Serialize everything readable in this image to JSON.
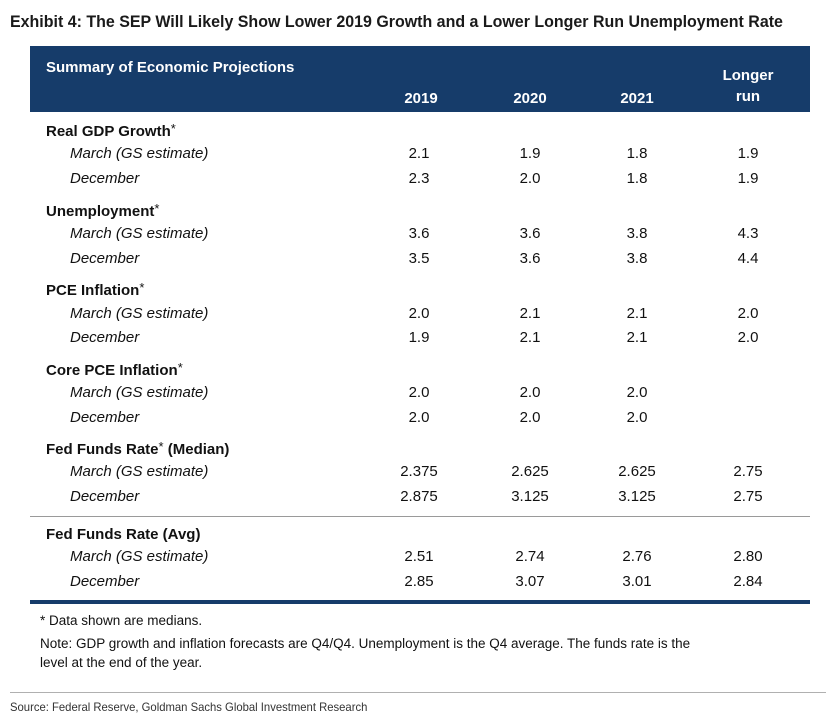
{
  "title": "Exhibit 4: The SEP Will Likely Show Lower 2019 Growth and a Lower Longer Run Unemployment Rate",
  "table_header": {
    "title": "Summary of Economic Projections",
    "col_2019": "2019",
    "col_2020": "2020",
    "col_2021": "2021",
    "col_longer_1": "Longer",
    "col_longer_2": "run"
  },
  "groups": [
    {
      "label": "Real GDP Growth",
      "star": "*",
      "suffix": "",
      "rows": [
        {
          "label": "March (GS estimate)",
          "v2019": "2.1",
          "v2020": "1.9",
          "v2021": "1.8",
          "vlong": "1.9"
        },
        {
          "label": "December",
          "v2019": "2.3",
          "v2020": "2.0",
          "v2021": "1.8",
          "vlong": "1.9"
        }
      ]
    },
    {
      "label": "Unemployment",
      "star": "*",
      "suffix": "",
      "rows": [
        {
          "label": "March (GS estimate)",
          "v2019": "3.6",
          "v2020": "3.6",
          "v2021": "3.8",
          "vlong": "4.3"
        },
        {
          "label": "December",
          "v2019": "3.5",
          "v2020": "3.6",
          "v2021": "3.8",
          "vlong": "4.4"
        }
      ]
    },
    {
      "label": "PCE Inflation",
      "star": "*",
      "suffix": "",
      "rows": [
        {
          "label": "March (GS estimate)",
          "v2019": "2.0",
          "v2020": "2.1",
          "v2021": "2.1",
          "vlong": "2.0"
        },
        {
          "label": "December",
          "v2019": "1.9",
          "v2020": "2.1",
          "v2021": "2.1",
          "vlong": "2.0"
        }
      ]
    },
    {
      "label": "Core PCE Inflation",
      "star": "*",
      "suffix": "",
      "rows": [
        {
          "label": "March (GS estimate)",
          "v2019": "2.0",
          "v2020": "2.0",
          "v2021": "2.0",
          "vlong": ""
        },
        {
          "label": "December",
          "v2019": "2.0",
          "v2020": "2.0",
          "v2021": "2.0",
          "vlong": ""
        }
      ]
    },
    {
      "label": "Fed Funds Rate",
      "star": "*",
      "suffix": " (Median)",
      "rows": [
        {
          "label": "March (GS estimate)",
          "v2019": "2.375",
          "v2020": "2.625",
          "v2021": "2.625",
          "vlong": "2.75"
        },
        {
          "label": "December",
          "v2019": "2.875",
          "v2020": "3.125",
          "v2021": "3.125",
          "vlong": "2.75"
        }
      ]
    },
    {
      "label": "Fed Funds Rate (Avg)",
      "star": "",
      "suffix": "",
      "rows": [
        {
          "label": "March (GS estimate)",
          "v2019": "2.51",
          "v2020": "2.74",
          "v2021": "2.76",
          "vlong": "2.80"
        },
        {
          "label": "December",
          "v2019": "2.85",
          "v2020": "3.07",
          "v2021": "3.01",
          "vlong": "2.84"
        }
      ]
    }
  ],
  "notes": {
    "medians": "* Data shown are medians.",
    "note_line1": "Note: GDP growth and inflation forecasts are Q4/Q4.  Unemployment is the Q4 average.  The funds rate is the",
    "note_line2": "level at the end of the year."
  },
  "source": "Source: Federal Reserve, Goldman Sachs Global Investment Research",
  "colors": {
    "header_band": "#163c6a",
    "header_text": "#ffffff"
  }
}
